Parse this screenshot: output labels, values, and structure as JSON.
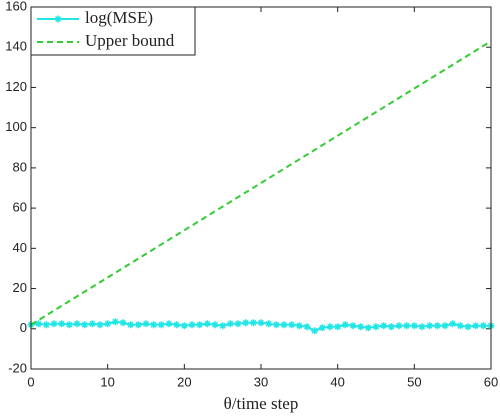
{
  "chart_data": {
    "type": "line",
    "xlabel": "θ/time step",
    "xlim": [
      0,
      60
    ],
    "xticks": [
      0,
      10,
      20,
      30,
      40,
      50,
      60
    ],
    "ylim": [
      -20,
      160
    ],
    "yticks": [
      -20,
      0,
      20,
      40,
      60,
      80,
      100,
      120,
      140,
      160
    ],
    "grid": false,
    "legend": "upper-left",
    "series": [
      {
        "name": "log(MSE)",
        "color": "#22e6e6",
        "marker": "asterisk",
        "dash": false,
        "x": [
          0,
          1,
          2,
          3,
          4,
          5,
          6,
          7,
          8,
          9,
          10,
          11,
          12,
          13,
          14,
          15,
          16,
          17,
          18,
          19,
          20,
          21,
          22,
          23,
          24,
          25,
          26,
          27,
          28,
          29,
          30,
          31,
          32,
          33,
          34,
          35,
          36,
          37,
          38,
          39,
          40,
          41,
          42,
          43,
          44,
          45,
          46,
          47,
          48,
          49,
          50,
          51,
          52,
          53,
          54,
          55,
          56,
          57,
          58,
          59,
          60
        ],
        "values": [
          2,
          2.5,
          2,
          2.5,
          2.5,
          2,
          2.5,
          2,
          2.5,
          2,
          2.5,
          3.5,
          3,
          2,
          2,
          2.5,
          2,
          2,
          2.5,
          2,
          1.5,
          2,
          2,
          2.5,
          2,
          1.5,
          2.5,
          2.5,
          3,
          3,
          3,
          2.5,
          2,
          2,
          2,
          1.5,
          1,
          -1,
          0.5,
          1,
          1,
          2,
          1.5,
          1,
          0.5,
          1,
          1.5,
          1,
          1.5,
          1.5,
          1.5,
          1,
          1.5,
          1.5,
          1.5,
          2.5,
          1.5,
          1,
          1.5,
          1.5,
          1.5
        ]
      },
      {
        "name": "Upper bound",
        "color": "#33cc33",
        "marker": "none",
        "dash": true,
        "x": [
          0,
          60
        ],
        "values": [
          2,
          143
        ]
      }
    ]
  }
}
